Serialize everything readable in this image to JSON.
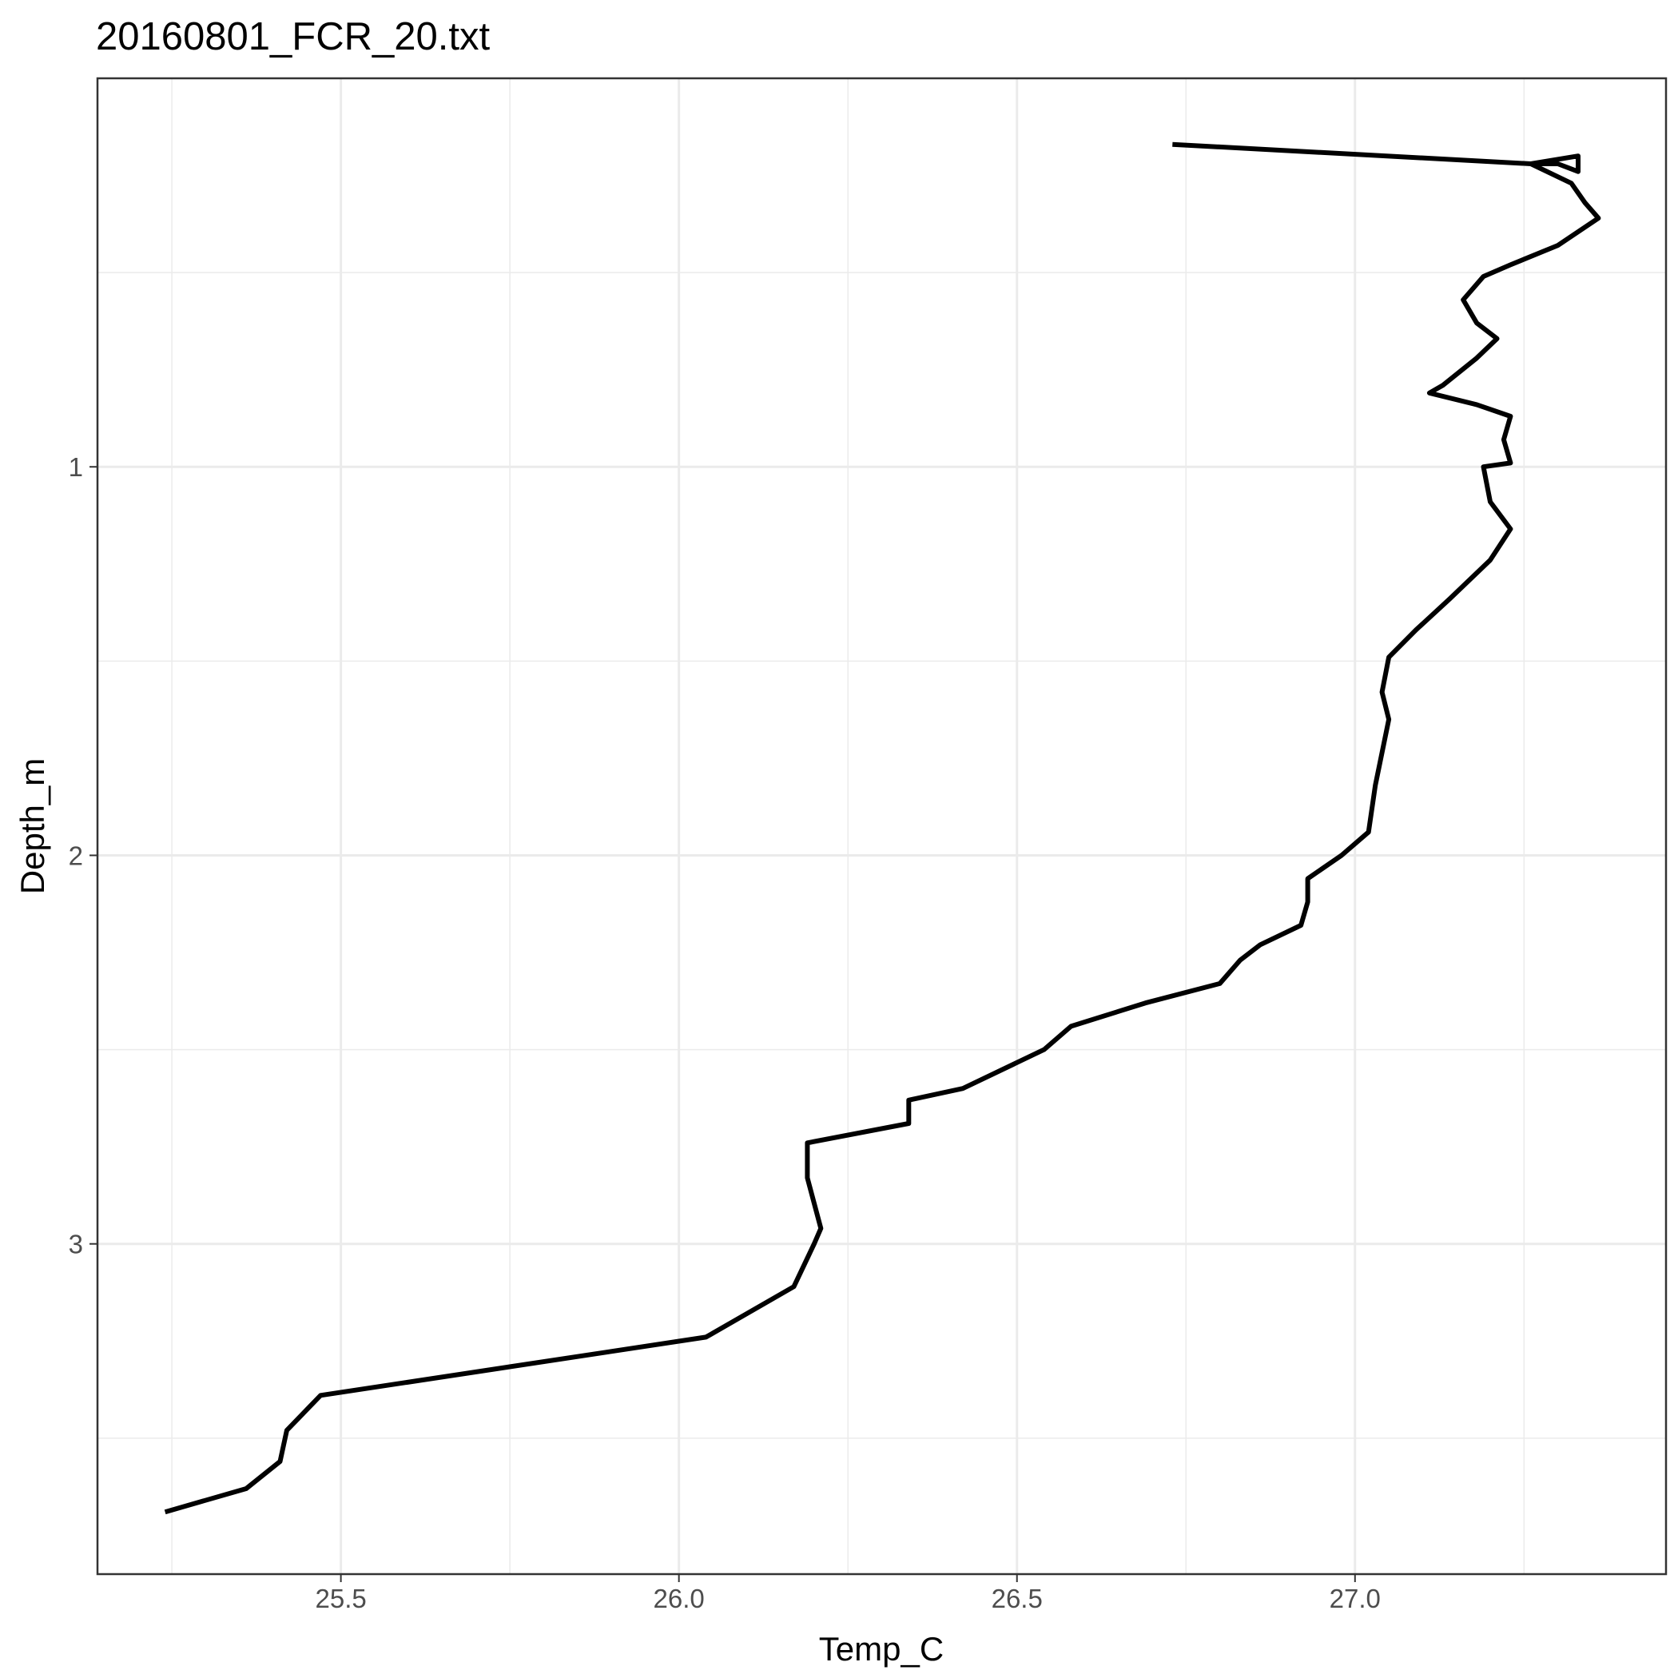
{
  "chart_data": {
    "type": "line",
    "title": "20160801_FCR_20.txt",
    "xlabel": "Temp_C",
    "ylabel": "Depth_m",
    "xlim": [
      25.14,
      27.46
    ],
    "ylim": [
      0.0,
      3.85
    ],
    "y_reversed": true,
    "grid": true,
    "x_ticks": [
      25.5,
      26.0,
      26.5,
      27.0
    ],
    "x_tick_labels": [
      "25.5",
      "26.0",
      "26.5",
      "27.0"
    ],
    "x_minor_ticks": [
      25.25,
      25.75,
      26.25,
      26.75,
      27.25
    ],
    "y_ticks": [
      1,
      2,
      3
    ],
    "y_tick_labels": [
      "1",
      "2",
      "3"
    ],
    "y_minor_ticks": [
      0.5,
      1.5,
      2.5,
      3.5
    ],
    "series": [
      {
        "color": "#000000",
        "points": [
          [
            26.73,
            0.17
          ],
          [
            27.26,
            0.22
          ],
          [
            27.33,
            0.2
          ],
          [
            27.33,
            0.24
          ],
          [
            27.3,
            0.22
          ],
          [
            27.26,
            0.22
          ],
          [
            27.32,
            0.27
          ],
          [
            27.34,
            0.32
          ],
          [
            27.36,
            0.36
          ],
          [
            27.3,
            0.43
          ],
          [
            27.23,
            0.48
          ],
          [
            27.19,
            0.51
          ],
          [
            27.16,
            0.57
          ],
          [
            27.18,
            0.63
          ],
          [
            27.21,
            0.67
          ],
          [
            27.18,
            0.72
          ],
          [
            27.13,
            0.79
          ],
          [
            27.11,
            0.81
          ],
          [
            27.18,
            0.84
          ],
          [
            27.23,
            0.87
          ],
          [
            27.22,
            0.93
          ],
          [
            27.23,
            0.99
          ],
          [
            27.19,
            1.0
          ],
          [
            27.2,
            1.09
          ],
          [
            27.23,
            1.16
          ],
          [
            27.2,
            1.24
          ],
          [
            27.14,
            1.34
          ],
          [
            27.09,
            1.42
          ],
          [
            27.05,
            1.49
          ],
          [
            27.04,
            1.58
          ],
          [
            27.05,
            1.65
          ],
          [
            27.03,
            1.82
          ],
          [
            27.02,
            1.94
          ],
          [
            26.98,
            2.0
          ],
          [
            26.93,
            2.06
          ],
          [
            26.93,
            2.12
          ],
          [
            26.92,
            2.18
          ],
          [
            26.86,
            2.23
          ],
          [
            26.83,
            2.27
          ],
          [
            26.8,
            2.33
          ],
          [
            26.69,
            2.38
          ],
          [
            26.58,
            2.44
          ],
          [
            26.54,
            2.5
          ],
          [
            26.42,
            2.6
          ],
          [
            26.34,
            2.63
          ],
          [
            26.34,
            2.69
          ],
          [
            26.19,
            2.74
          ],
          [
            26.19,
            2.83
          ],
          [
            26.21,
            2.96
          ],
          [
            26.2,
            3.0
          ],
          [
            26.17,
            3.11
          ],
          [
            26.04,
            3.24
          ],
          [
            25.47,
            3.39
          ],
          [
            25.42,
            3.48
          ],
          [
            25.41,
            3.56
          ],
          [
            25.36,
            3.63
          ],
          [
            25.24,
            3.69
          ]
        ]
      }
    ]
  }
}
